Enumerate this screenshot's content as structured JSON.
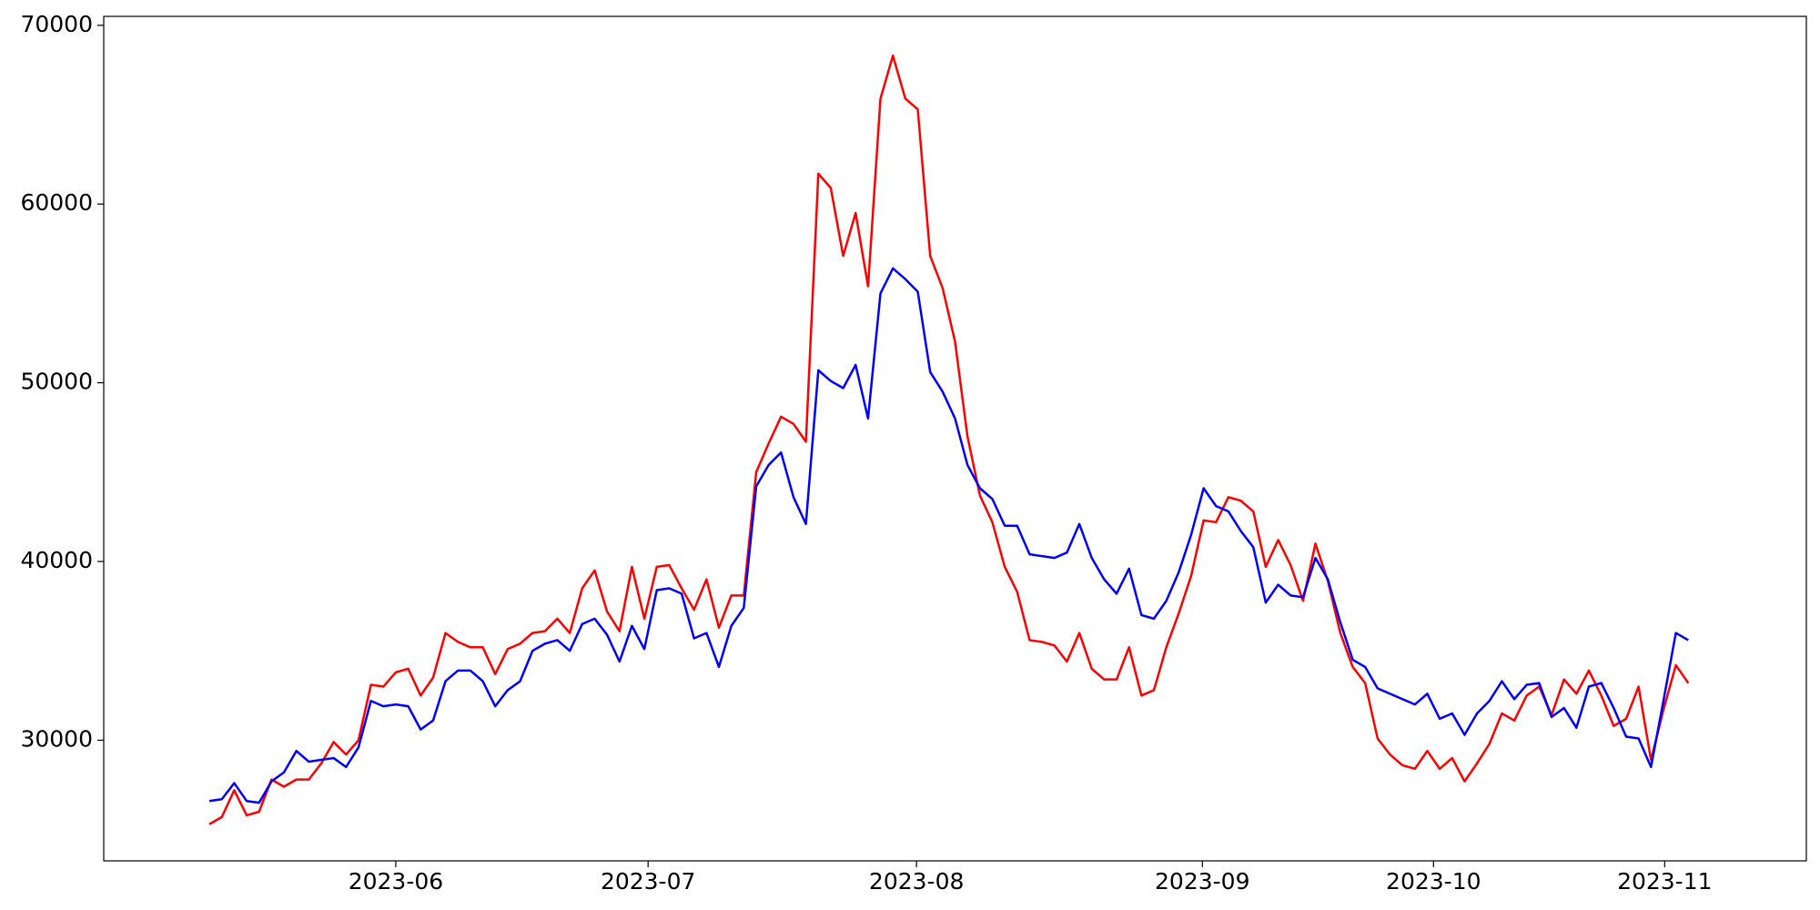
{
  "chart_data": {
    "type": "line",
    "categories": [
      null,
      null,
      null,
      null,
      null,
      null,
      null,
      null,
      null,
      null,
      null,
      null,
      null,
      null,
      null,
      null,
      null,
      null,
      null,
      null,
      null,
      null,
      null,
      null,
      null,
      null,
      null,
      null,
      null,
      null,
      null,
      null,
      null,
      null,
      null,
      null,
      null,
      null,
      null,
      null,
      null,
      null,
      null,
      null,
      null,
      null,
      null,
      null,
      null,
      null,
      null,
      null,
      null,
      null,
      null,
      null,
      null,
      null,
      null,
      null,
      null,
      null,
      null,
      null,
      null,
      null,
      null,
      null,
      null,
      null,
      null,
      null,
      null,
      null,
      null,
      null,
      null,
      null,
      null,
      null,
      null,
      null,
      null,
      null,
      null,
      null,
      null,
      null,
      null,
      null,
      null,
      null,
      null,
      null,
      null,
      null,
      null,
      null,
      null,
      null,
      null,
      null,
      null,
      null,
      null,
      null,
      null,
      null,
      null,
      null,
      null,
      null,
      null,
      null,
      null,
      null,
      null,
      null,
      null,
      null
    ],
    "series": [
      {
        "color": "red",
        "values": [
          25300,
          25700,
          27200,
          25800,
          26000,
          27800,
          27400,
          27800,
          27800,
          28700,
          29900,
          29200,
          30000,
          33100,
          33000,
          33800,
          34000,
          32500,
          33500,
          36000,
          35500,
          35200,
          35200,
          33700,
          35100,
          35400,
          36000,
          36100,
          36800,
          36000,
          38500,
          39500,
          37200,
          36100,
          39700,
          36800,
          39700,
          39800,
          38500,
          37300,
          39000,
          36300,
          38100,
          38100,
          45000,
          46600,
          48100,
          47700,
          46700,
          61700,
          60900,
          57100,
          59500,
          55400,
          65900,
          68300,
          65900,
          65300,
          57100,
          55300,
          52300,
          47000,
          43700,
          42200,
          39700,
          38300,
          35600,
          35500,
          35300,
          34400,
          36000,
          34000,
          33400,
          33400,
          35200,
          32500,
          32800,
          35200,
          37100,
          39200,
          42300,
          42200,
          43600,
          43400,
          42800,
          39700,
          41200,
          39800,
          37800,
          41000,
          38900,
          36000,
          34100,
          33200,
          30100,
          29200,
          28600,
          28400,
          29400,
          28400,
          29000,
          27700,
          28700,
          29800,
          31500,
          31100,
          32500,
          33000,
          31400,
          33400,
          32600,
          33900,
          32500,
          30800,
          31200,
          33000,
          28900,
          31700,
          34200,
          33200
        ]
      },
      {
        "color": "blue",
        "values": [
          26600,
          26700,
          27600,
          26600,
          26500,
          27700,
          28200,
          29400,
          28800,
          28900,
          29000,
          28500,
          29600,
          32200,
          31900,
          32000,
          31900,
          30600,
          31100,
          33300,
          33900,
          33900,
          33300,
          31900,
          32800,
          33300,
          35000,
          35400,
          35600,
          35000,
          36500,
          36800,
          35900,
          34400,
          36400,
          35100,
          38400,
          38500,
          38200,
          35700,
          36000,
          34100,
          36400,
          37400,
          44200,
          45400,
          46100,
          43600,
          42100,
          50700,
          50100,
          49700,
          51000,
          48000,
          55000,
          56400,
          55800,
          55100,
          50600,
          49500,
          48000,
          45400,
          44100,
          43500,
          42000,
          42000,
          40400,
          40300,
          40200,
          40500,
          42100,
          40200,
          39000,
          38200,
          39600,
          37000,
          36800,
          37800,
          39400,
          41500,
          44100,
          43100,
          42800,
          41700,
          40800,
          37700,
          38700,
          38100,
          38000,
          40200,
          39000,
          36600,
          34500,
          34100,
          32900,
          32600,
          32300,
          32000,
          32600,
          31200,
          31500,
          30300,
          31500,
          32200,
          33300,
          32300,
          33100,
          33200,
          31300,
          31800,
          30700,
          33000,
          33200,
          31800,
          30200,
          30100,
          28500,
          32200,
          36000,
          35600
        ]
      }
    ],
    "xlim": [
      -8.5,
      128.5
    ],
    "xticks": [
      {
        "value": 15,
        "label": "2023-06"
      },
      {
        "value": 35.3,
        "label": "2023-07"
      },
      {
        "value": 56.9,
        "label": "2023-08"
      },
      {
        "value": 79.9,
        "label": "2023-09"
      },
      {
        "value": 98.5,
        "label": "2023-10"
      },
      {
        "value": 117.1,
        "label": "2023-11"
      }
    ],
    "ylim": [
      23250,
      70500
    ],
    "yticks": [
      30000,
      40000,
      50000,
      60000,
      70000
    ],
    "grid": false
  }
}
